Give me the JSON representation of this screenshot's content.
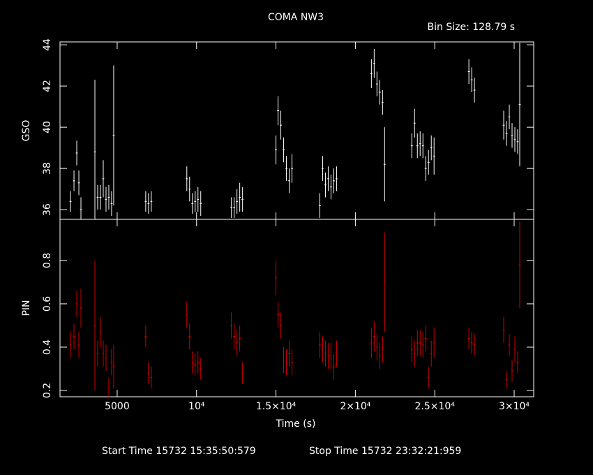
{
  "chart_data": [
    {
      "type": "scatter",
      "title": "COMA NW3",
      "annotation": "Bin Size: 128.79 s",
      "ylabel": "GSO",
      "color": "#ffffff",
      "xlim": [
        1400,
        31230
      ],
      "ylim": [
        35.53,
        44.14
      ],
      "yticks": [
        36,
        38,
        40,
        42,
        44
      ],
      "xticks": [
        5000,
        10000,
        15000,
        20000,
        25000,
        30000
      ],
      "xerr": 64.4,
      "x": [
        2061,
        2281,
        2456,
        2588,
        2719,
        3597,
        3772,
        3947,
        4123,
        4298,
        4474,
        4649,
        4781,
        6798,
        6974,
        7149,
        9386,
        9561,
        9737,
        9912,
        10088,
        10263,
        12193,
        12368,
        12544,
        12719,
        12895,
        15000,
        15132,
        15307,
        15483,
        15658,
        15833,
        16009,
        17763,
        17939,
        18114,
        18290,
        18465,
        18640,
        18816,
        21009,
        21184,
        21360,
        21535,
        21711,
        21842,
        23553,
        23728,
        23904,
        24079,
        24254,
        24430,
        24605,
        24781,
        24956,
        27149,
        27325,
        27500,
        29342,
        29518,
        29693,
        29868,
        30044,
        30219,
        30351
      ],
      "values": [
        36.4,
        37.4,
        38.75,
        37.3,
        36.0,
        38.8,
        36.6,
        36.6,
        37.5,
        36.5,
        36.6,
        36.3,
        39.6,
        36.4,
        36.3,
        36.4,
        37.5,
        37.0,
        36.3,
        36.4,
        36.5,
        36.3,
        36.1,
        36.1,
        36.4,
        36.6,
        36.5,
        38.9,
        40.8,
        40.1,
        38.9,
        38.0,
        37.4,
        38.0,
        36.2,
        38.0,
        37.2,
        37.5,
        37.1,
        37.4,
        37.5,
        42.6,
        43.1,
        42.1,
        41.7,
        41.2,
        38.2,
        39.1,
        40.2,
        39.1,
        39.2,
        39.1,
        38.0,
        38.3,
        39.0,
        38.6,
        42.7,
        42.3,
        41.8,
        40.1,
        39.7,
        40.5,
        39.6,
        39.4,
        39.3,
        41.1
      ],
      "errors": [
        0.5,
        0.5,
        0.6,
        0.6,
        0.6,
        3.5,
        0.6,
        0.6,
        0.9,
        0.6,
        0.6,
        0.6,
        3.4,
        0.5,
        0.5,
        0.5,
        0.6,
        0.6,
        0.5,
        0.5,
        0.6,
        0.6,
        0.5,
        0.5,
        0.6,
        0.7,
        0.6,
        0.7,
        0.7,
        0.7,
        0.6,
        0.6,
        0.6,
        0.7,
        0.6,
        0.6,
        0.6,
        0.6,
        0.6,
        0.6,
        0.6,
        0.7,
        0.7,
        0.6,
        0.6,
        0.6,
        1.8,
        0.6,
        0.7,
        0.6,
        0.6,
        0.6,
        0.6,
        0.6,
        0.6,
        0.9,
        0.6,
        0.6,
        0.6,
        0.7,
        0.6,
        0.6,
        0.6,
        0.6,
        0.6,
        3.0
      ]
    },
    {
      "type": "scatter",
      "ylabel": "PIN",
      "xlabel": "Time (s)",
      "color": "#d00000",
      "xlim": [
        1400,
        31230
      ],
      "ylim": [
        0.171,
        0.99
      ],
      "yticks": [
        0.2,
        0.4,
        0.6,
        0.8
      ],
      "xticks": [
        5000,
        {
          "value": 10000,
          "label": "10⁴"
        },
        {
          "value": 15000,
          "label": "1.5×10⁴"
        },
        {
          "value": 20000,
          "label": "2×10⁴"
        },
        {
          "value": 25000,
          "label": "2.5×10⁴"
        },
        {
          "value": 30000,
          "label": "3×10⁴"
        }
      ],
      "xerr": 64.4,
      "x": [
        2061,
        2281,
        2456,
        2588,
        2719,
        3597,
        3772,
        3947,
        4123,
        4298,
        4474,
        4649,
        4781,
        6798,
        6974,
        7149,
        9386,
        9561,
        9737,
        9912,
        10088,
        10263,
        12193,
        12368,
        12544,
        12719,
        12895,
        15000,
        15132,
        15307,
        15483,
        15658,
        15833,
        16009,
        17763,
        17939,
        18114,
        18290,
        18465,
        18640,
        18816,
        21009,
        21184,
        21360,
        21535,
        21711,
        21842,
        23553,
        23728,
        23904,
        24079,
        24254,
        24430,
        24605,
        24781,
        24956,
        27149,
        27325,
        27500,
        29342,
        29518,
        29693,
        29868,
        30044,
        30219,
        30351
      ],
      "values": [
        0.41,
        0.45,
        0.6,
        0.41,
        0.58,
        0.5,
        0.37,
        0.47,
        0.37,
        0.35,
        0.21,
        0.33,
        0.31,
        0.45,
        0.28,
        0.26,
        0.55,
        0.45,
        0.33,
        0.32,
        0.33,
        0.3,
        0.5,
        0.45,
        0.42,
        0.44,
        0.28,
        0.72,
        0.55,
        0.5,
        0.34,
        0.33,
        0.37,
        0.33,
        0.41,
        0.39,
        0.37,
        0.36,
        0.36,
        0.31,
        0.37,
        0.42,
        0.45,
        0.4,
        0.36,
        0.39,
        0.7,
        0.39,
        0.37,
        0.42,
        0.42,
        0.41,
        0.44,
        0.26,
        0.37,
        0.42,
        0.44,
        0.42,
        0.41,
        0.48,
        0.25,
        0.41,
        0.29,
        0.39,
        0.33,
        0.78
      ],
      "errors": [
        0.06,
        0.06,
        0.06,
        0.06,
        0.09,
        0.3,
        0.06,
        0.07,
        0.06,
        0.06,
        0.05,
        0.06,
        0.1,
        0.05,
        0.05,
        0.05,
        0.06,
        0.06,
        0.05,
        0.05,
        0.05,
        0.05,
        0.06,
        0.06,
        0.06,
        0.06,
        0.05,
        0.08,
        0.06,
        0.06,
        0.06,
        0.06,
        0.06,
        0.06,
        0.06,
        0.06,
        0.06,
        0.06,
        0.06,
        0.06,
        0.06,
        0.07,
        0.07,
        0.06,
        0.06,
        0.06,
        0.23,
        0.06,
        0.06,
        0.06,
        0.06,
        0.06,
        0.06,
        0.05,
        0.06,
        0.07,
        0.05,
        0.05,
        0.05,
        0.06,
        0.04,
        0.05,
        0.05,
        0.06,
        0.05,
        0.2
      ]
    }
  ],
  "footer": [
    "Start Time 15732 15:35:50:579",
    "Stop Time 15732 23:32:21:959"
  ]
}
